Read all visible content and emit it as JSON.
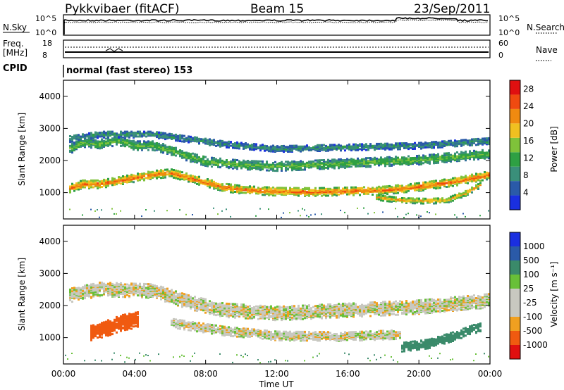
{
  "header": {
    "station": "Pykkvibaer (fitACF)",
    "beam": "Beam 15",
    "date": "23/Sep/2011"
  },
  "panels": {
    "nsky_label": "N.Sky",
    "nsearch_label": "N.Search",
    "freq_label_1": "Freq.",
    "freq_label_2": "[MHz]",
    "nave_label": "Nave",
    "cpid_label": "CPID",
    "cpid_value": "normal (fast stereo) 153",
    "nsky_ticks": [
      "10^5",
      "10^0"
    ],
    "nsearch_ticks": [
      "10^5",
      "10^0"
    ],
    "freq_ticks": [
      "18",
      "8"
    ],
    "nave_ticks": [
      "60",
      "0"
    ]
  },
  "colors": {
    "power_scale": [
      "#1a2fe0",
      "#2a5aa8",
      "#3a8f7a",
      "#2ea043",
      "#7fc23a",
      "#f0c020",
      "#f08a10",
      "#f04a10",
      "#e01010"
    ],
    "velocity_scale": [
      "#e01010",
      "#f05a10",
      "#f0a020",
      "#c8c8c0",
      "#c8c8c0",
      "#68c038",
      "#3a8a6a",
      "#2a5aa8",
      "#1a2fe0"
    ]
  },
  "chart_data": [
    {
      "type": "heatmap",
      "title": "Power",
      "ylabel": "Slant Range [km]",
      "ylim": [
        180,
        4500
      ],
      "yticks": [
        "1000",
        "2000",
        "3000",
        "4000"
      ],
      "xlim_hours": [
        0,
        24
      ],
      "colorbar_label": "Power [dB]",
      "colorbar_ticks": [
        "4",
        "8",
        "12",
        "16",
        "20",
        "24",
        "28"
      ],
      "colorbar_range": [
        0,
        30
      ],
      "bands": [
        {
          "name": "main",
          "points": [
            [
              0.2,
              1150
            ],
            [
              1.0,
              1300
            ],
            [
              2.0,
              1300
            ],
            [
              3.5,
              1450
            ],
            [
              5.0,
              1600
            ],
            [
              6.0,
              1650
            ],
            [
              7.0,
              1500
            ],
            [
              8.0,
              1350
            ],
            [
              9.0,
              1200
            ],
            [
              10.0,
              1130
            ],
            [
              12.0,
              1070
            ],
            [
              14.0,
              1060
            ],
            [
              16.0,
              1080
            ],
            [
              18.0,
              1110
            ],
            [
              20.0,
              1220
            ],
            [
              22.0,
              1380
            ],
            [
              24.0,
              1600
            ]
          ],
          "width": 260,
          "power": 24
        },
        {
          "name": "upper",
          "points": [
            [
              0.2,
              2350
            ],
            [
              1.0,
              2600
            ],
            [
              2.0,
              2550
            ],
            [
              3.0,
              2650
            ],
            [
              4.0,
              2500
            ],
            [
              5.0,
              2500
            ],
            [
              6.0,
              2350
            ],
            [
              7.0,
              2150
            ],
            [
              8.0,
              2000
            ],
            [
              10.0,
              1900
            ],
            [
              12.0,
              1850
            ],
            [
              14.0,
              1900
            ],
            [
              16.0,
              1950
            ],
            [
              18.0,
              2000
            ],
            [
              20.0,
              2050
            ],
            [
              22.0,
              2150
            ],
            [
              24.0,
              2250
            ]
          ],
          "width": 280,
          "power": 14
        },
        {
          "name": "top",
          "points": [
            [
              0.2,
              2700
            ],
            [
              2.0,
              2850
            ],
            [
              5.0,
              2850
            ],
            [
              7.0,
              2700
            ],
            [
              9.0,
              2550
            ],
            [
              12.0,
              2400
            ],
            [
              16.0,
              2450
            ],
            [
              20.0,
              2500
            ],
            [
              24.0,
              2650
            ]
          ],
          "width": 200,
          "power": 9
        },
        {
          "name": "late",
          "points": [
            [
              17.5,
              900
            ],
            [
              19.0,
              800
            ],
            [
              20.5,
              780
            ],
            [
              21.5,
              800
            ],
            [
              22.5,
              1000
            ],
            [
              23.5,
              1300
            ]
          ],
          "width": 180,
          "power": 20
        }
      ]
    },
    {
      "type": "heatmap",
      "title": "Velocity",
      "ylabel": "Slant Range [km]",
      "ylim": [
        180,
        4500
      ],
      "yticks": [
        "1000",
        "2000",
        "3000",
        "4000"
      ],
      "xlim_hours": [
        0,
        24
      ],
      "xticks": [
        "00:00",
        "04:00",
        "08:00",
        "12:00",
        "16:00",
        "20:00",
        "00:00"
      ],
      "xlabel": "Time UT",
      "colorbar_label": "Velocity [m s⁻¹]",
      "colorbar_ticks": [
        "-1000",
        "-500",
        "-100",
        "-25",
        "25",
        "100",
        "500",
        "1000"
      ],
      "bands": [
        {
          "name": "ground",
          "points": [
            [
              0.2,
              2350
            ],
            [
              2.0,
              2550
            ],
            [
              5.0,
              2500
            ],
            [
              7.0,
              2150
            ],
            [
              9.0,
              1900
            ],
            [
              12.0,
              1800
            ],
            [
              16.0,
              1900
            ],
            [
              20.0,
              2000
            ],
            [
              24.0,
              2200
            ]
          ],
          "width": 450,
          "velocity": 0
        },
        {
          "name": "lower",
          "points": [
            [
              6.0,
              1500
            ],
            [
              9.0,
              1250
            ],
            [
              12.0,
              1100
            ],
            [
              16.0,
              1080
            ],
            [
              19.0,
              1150
            ]
          ],
          "width": 300,
          "velocity": 0
        },
        {
          "name": "neg_early",
          "points": [
            [
              1.5,
              1200
            ],
            [
              2.5,
              1350
            ],
            [
              3.2,
              1500
            ],
            [
              4.2,
              1600
            ]
          ],
          "width": 500,
          "velocity": -150
        },
        {
          "name": "pos_late",
          "points": [
            [
              19.0,
              750
            ],
            [
              20.5,
              850
            ],
            [
              22.0,
              1100
            ],
            [
              23.5,
              1400
            ]
          ],
          "width": 300,
          "velocity": 400
        }
      ]
    }
  ]
}
